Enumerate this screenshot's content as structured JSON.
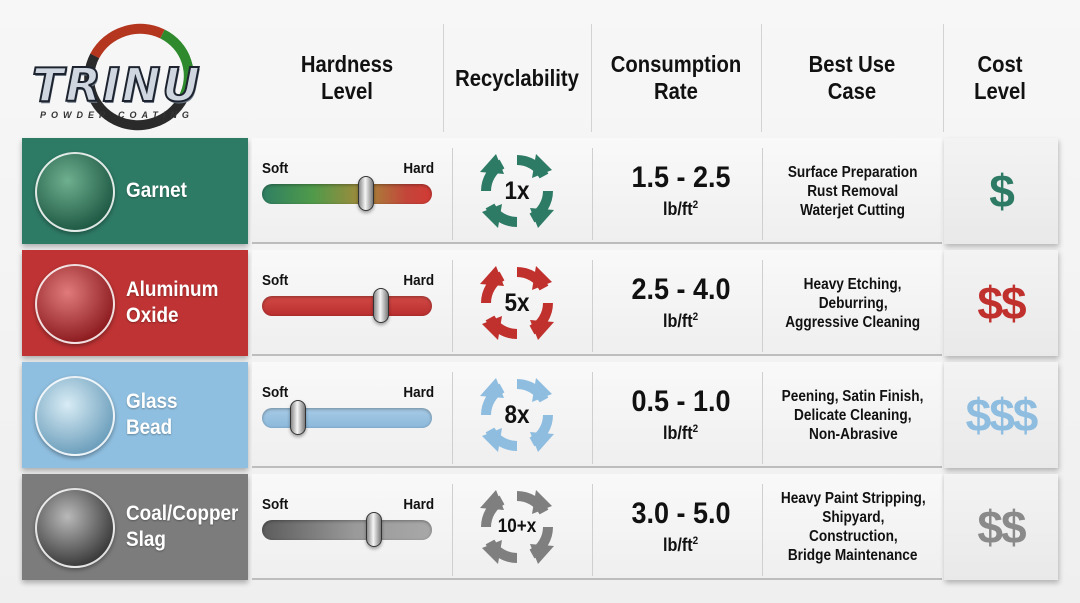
{
  "logo": {
    "word": "TRINU",
    "subtitle": "POWDER COATING"
  },
  "headers": {
    "hardness": [
      "Hardness",
      "Level"
    ],
    "recyclability": [
      "Recyclability"
    ],
    "consumption": [
      "Consumption",
      "Rate"
    ],
    "use_case": [
      "Best Use",
      "Case"
    ],
    "cost": [
      "Cost",
      "Level"
    ]
  },
  "scale_labels": {
    "soft": "Soft",
    "hard": "Hard"
  },
  "consumption_unit": "lb/ft",
  "consumption_unit_sup": "2",
  "rows": [
    {
      "name_lines": [
        "Garnet"
      ],
      "color": "#2e7b65",
      "thumb": [
        "#1f5a45",
        "#6fb08f"
      ],
      "hardness_pct": 0.61,
      "track": "linear-gradient(90deg,#2f7f63,#4f9a4a 30%,#a58a3a 60%,#c3453a 85%,#d23a35)",
      "recycle_multiplier": "1x",
      "recycle_color": "#2e7b65",
      "consumption": "1.5 - 2.5",
      "use_case": [
        "Surface Preparation",
        "Rust Removal",
        "Waterjet Cutting"
      ],
      "cost": "$",
      "cost_color": "#2e7b65"
    },
    {
      "name_lines": [
        "Aluminum",
        "Oxide"
      ],
      "color": "#bf3334",
      "thumb": [
        "#8d1c20",
        "#e07b7b"
      ],
      "hardness_pct": 0.7,
      "track": "linear-gradient(180deg,#d24a45,#b92e2f)",
      "recycle_multiplier": "5x",
      "recycle_color": "#c0302d",
      "consumption": "2.5 - 4.0",
      "use_case": [
        "Heavy Etching,",
        "Deburring,",
        "Aggressive Cleaning"
      ],
      "cost": "$$",
      "cost_color": "#c0302d"
    },
    {
      "name_lines": [
        "Glass",
        "Bead"
      ],
      "color": "#8fbfe0",
      "thumb": [
        "#6d9fbc",
        "#d8ecf5"
      ],
      "hardness_pct": 0.21,
      "track": "linear-gradient(180deg,#a7cbe6,#8bb8da)",
      "recycle_multiplier": "8x",
      "recycle_color": "#8ebde0",
      "consumption": "0.5 - 1.0",
      "use_case": [
        "Peening, Satin Finish,",
        "Delicate Cleaning,",
        "Non-Abrasive"
      ],
      "cost": "$$$",
      "cost_color": "#8ebde0"
    },
    {
      "name_lines": [
        "Coal/Copper",
        "Slag"
      ],
      "color": "#7c7c7c",
      "thumb": [
        "#3b3b3b",
        "#b9b9b9"
      ],
      "hardness_pct": 0.66,
      "track": "linear-gradient(90deg,#5c5c5c,#9a9a9a 55%,#a8a8a8)",
      "recycle_multiplier": "10+x",
      "recycle_color": "#7f7f7f",
      "consumption": "3.0 - 5.0",
      "use_case": [
        "Heavy Paint Stripping,",
        "Shipyard,",
        "Construction,",
        "Bridge Maintenance"
      ],
      "cost": "$$",
      "cost_color": "#8a8a8a"
    }
  ]
}
